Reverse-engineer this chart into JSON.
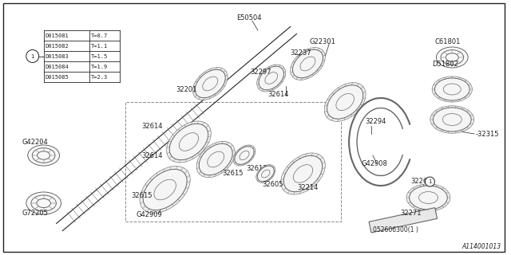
{
  "bg_color": "#ffffff",
  "border_color": "#222222",
  "lc": "#666666",
  "dc": "#222222",
  "fig_width": 6.4,
  "fig_height": 3.2,
  "dpi": 100,
  "diagram_number": "A114001013",
  "table_data": [
    [
      "D015081",
      "T=0.7"
    ],
    [
      "D015082",
      "T=1.1"
    ],
    [
      "D015083",
      "T=1.5"
    ],
    [
      "D015084",
      "T=1.9"
    ],
    [
      "D015085",
      "T=2.3"
    ]
  ]
}
